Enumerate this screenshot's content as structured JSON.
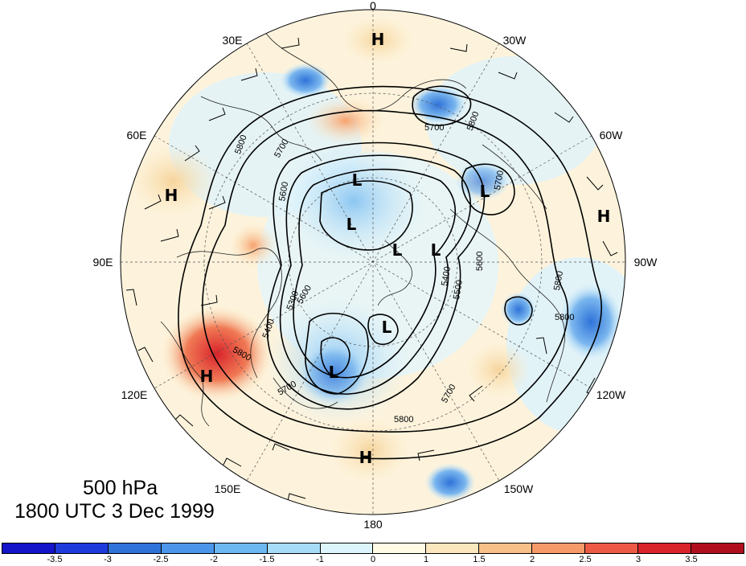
{
  "title": {
    "level": "500 hPa",
    "time": "1800 UTC 3 Dec 1999"
  },
  "map": {
    "projection": "north polar stereographic",
    "longitude_labels": [
      "0",
      "30W",
      "60W",
      "90W",
      "120W",
      "150W",
      "180",
      "150E",
      "120E",
      "90E",
      "60E",
      "30E"
    ],
    "contour_labels": [
      "5700",
      "5800",
      "5600",
      "5700",
      "5800",
      "5600",
      "5700",
      "5800",
      "5800",
      "5800",
      "5700",
      "5800",
      "5500",
      "5400",
      "5300",
      "5600",
      "5400",
      "5700"
    ],
    "centers": [
      {
        "type": "H"
      },
      {
        "type": "H"
      },
      {
        "type": "H"
      },
      {
        "type": "H"
      },
      {
        "type": "H"
      },
      {
        "type": "L"
      },
      {
        "type": "L"
      },
      {
        "type": "L"
      },
      {
        "type": "L"
      },
      {
        "type": "L"
      },
      {
        "type": "L"
      },
      {
        "type": "L"
      }
    ],
    "shading_colors": {
      "strong_positive": "#e0302a",
      "positive": "#f7b98a",
      "weak_positive": "#fbe7bd",
      "weak_negative": "#cfeefb",
      "negative": "#86bdf0",
      "strong_negative": "#2f73d9"
    }
  },
  "colorbar": {
    "tick_labels": [
      "-3.5",
      "-3",
      "-2.5",
      "-2",
      "-1.5",
      "-1",
      "0",
      "1",
      "1.5",
      "2",
      "2.5",
      "3",
      "3.5"
    ],
    "colors": [
      "#1414c8",
      "#1e3cdc",
      "#2f73d9",
      "#4b96ea",
      "#6cb8f2",
      "#a6dcf8",
      "#dcf4fc",
      "#fffbe4",
      "#fbe7bd",
      "#f7c089",
      "#f59a68",
      "#ec5a45",
      "#d9232b",
      "#b0101e"
    ]
  }
}
